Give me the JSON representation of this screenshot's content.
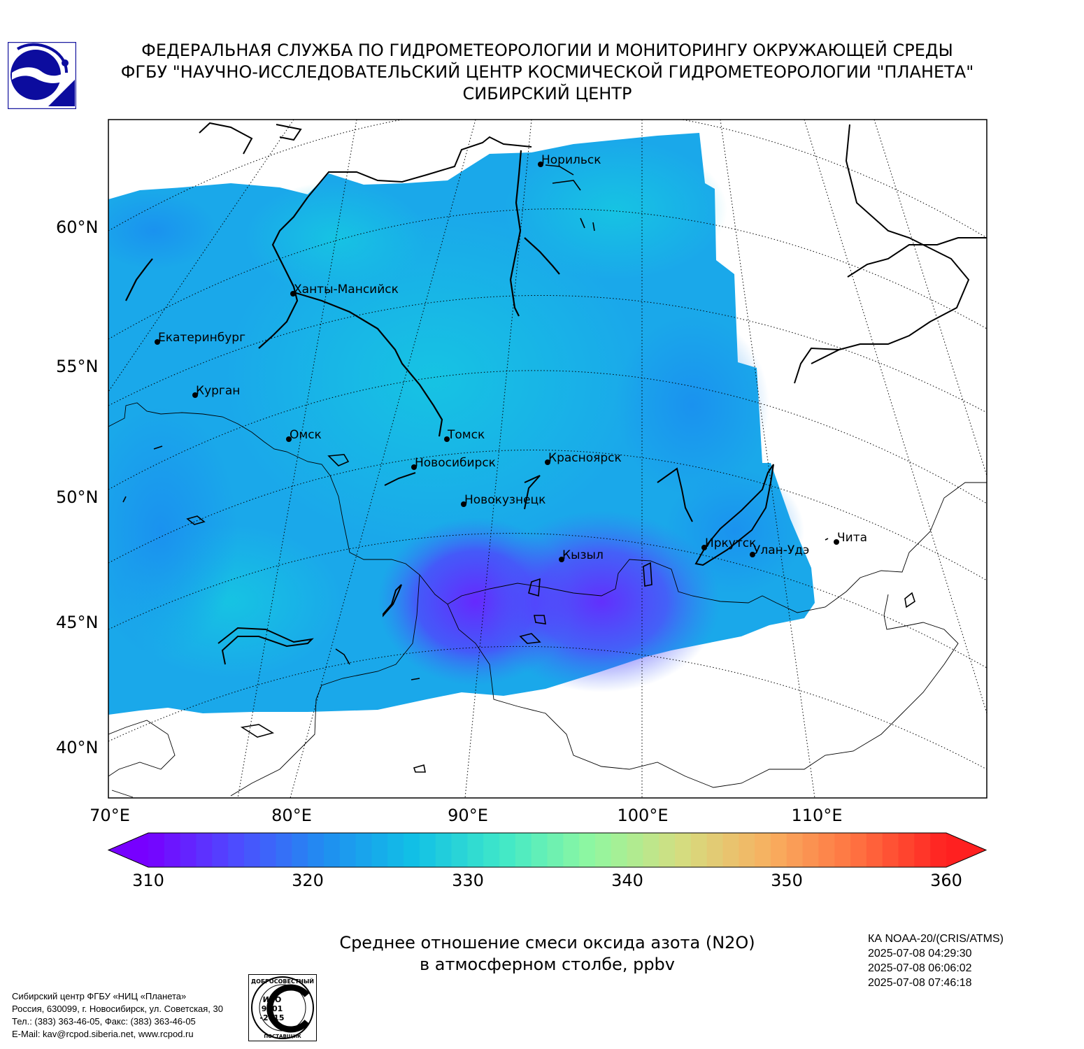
{
  "header": {
    "line1": "ФЕДЕРАЛЬНАЯ СЛУЖБА ПО ГИДРОМЕТЕОРОЛОГИИ И МОНИТОРИНГУ ОКРУЖАЮЩЕЙ СРЕДЫ",
    "line2": "ФГБУ \"НАУЧНО-ИССЛЕДОВАТЕЛЬСКИЙ ЦЕНТР КОСМИЧЕСКОЙ ГИДРОМЕТЕОРОЛОГИИ \"ПЛАНЕТА\"",
    "line3": "СИБИРСКИЙ ЦЕНТР"
  },
  "map": {
    "lat_labels": [
      "60°N",
      "55°N",
      "50°N",
      "45°N",
      "40°N"
    ],
    "lon_labels": [
      "70°E",
      "80°E",
      "90°E",
      "100°E",
      "110°E"
    ],
    "cities": [
      {
        "name": "Норильск"
      },
      {
        "name": "Ханты-Мансийск"
      },
      {
        "name": "Екатеринбург"
      },
      {
        "name": "Курган"
      },
      {
        "name": "Омск"
      },
      {
        "name": "Томск"
      },
      {
        "name": "Новосибирск"
      },
      {
        "name": "Красноярск"
      },
      {
        "name": "Новокузнецк"
      },
      {
        "name": "Иркутск"
      },
      {
        "name": "Улан-Удэ"
      },
      {
        "name": "Чита"
      },
      {
        "name": "Кызыл"
      }
    ]
  },
  "colorbar": {
    "ticks": [
      "310",
      "320",
      "330",
      "340",
      "350",
      "360"
    ],
    "min": 310,
    "max": 360,
    "colors": [
      "#7700ff",
      "#4d4dff",
      "#1f8ff0",
      "#11c0e6",
      "#40e8c8",
      "#90f8a0",
      "#d4dd80",
      "#f8b060",
      "#ff7040",
      "#ff2020"
    ]
  },
  "caption": {
    "line1": "Среднее отношение смеси оксида азота (N2O)",
    "line2": "в атмосферном столбе, ppbv"
  },
  "satellite": {
    "name": "КА NOAA-20/(CRIS/ATMS)",
    "times": [
      "2025-07-08 04:29:30",
      "2025-07-08 06:06:02",
      "2025-07-08 07:46:18"
    ]
  },
  "footer": {
    "line1": "Сибирский центр ФГБУ «НИЦ «Планета»",
    "line2": "Россия, 630099, г. Новосибирск, ул. Советская, 30",
    "line3": "Тел.: (383) 363-46-05, Факс: (383) 363-46-05",
    "line4": "E-Mail: kav@rcpod.siberia.net, www.rcpod.ru"
  },
  "iso_badge": {
    "top": "ДОБРОСОВЕСТНЫЙ",
    "l1": "ИСО",
    "l2": "9001",
    "l3": "-2015",
    "bottom": "ПОСТАВЩИК"
  }
}
